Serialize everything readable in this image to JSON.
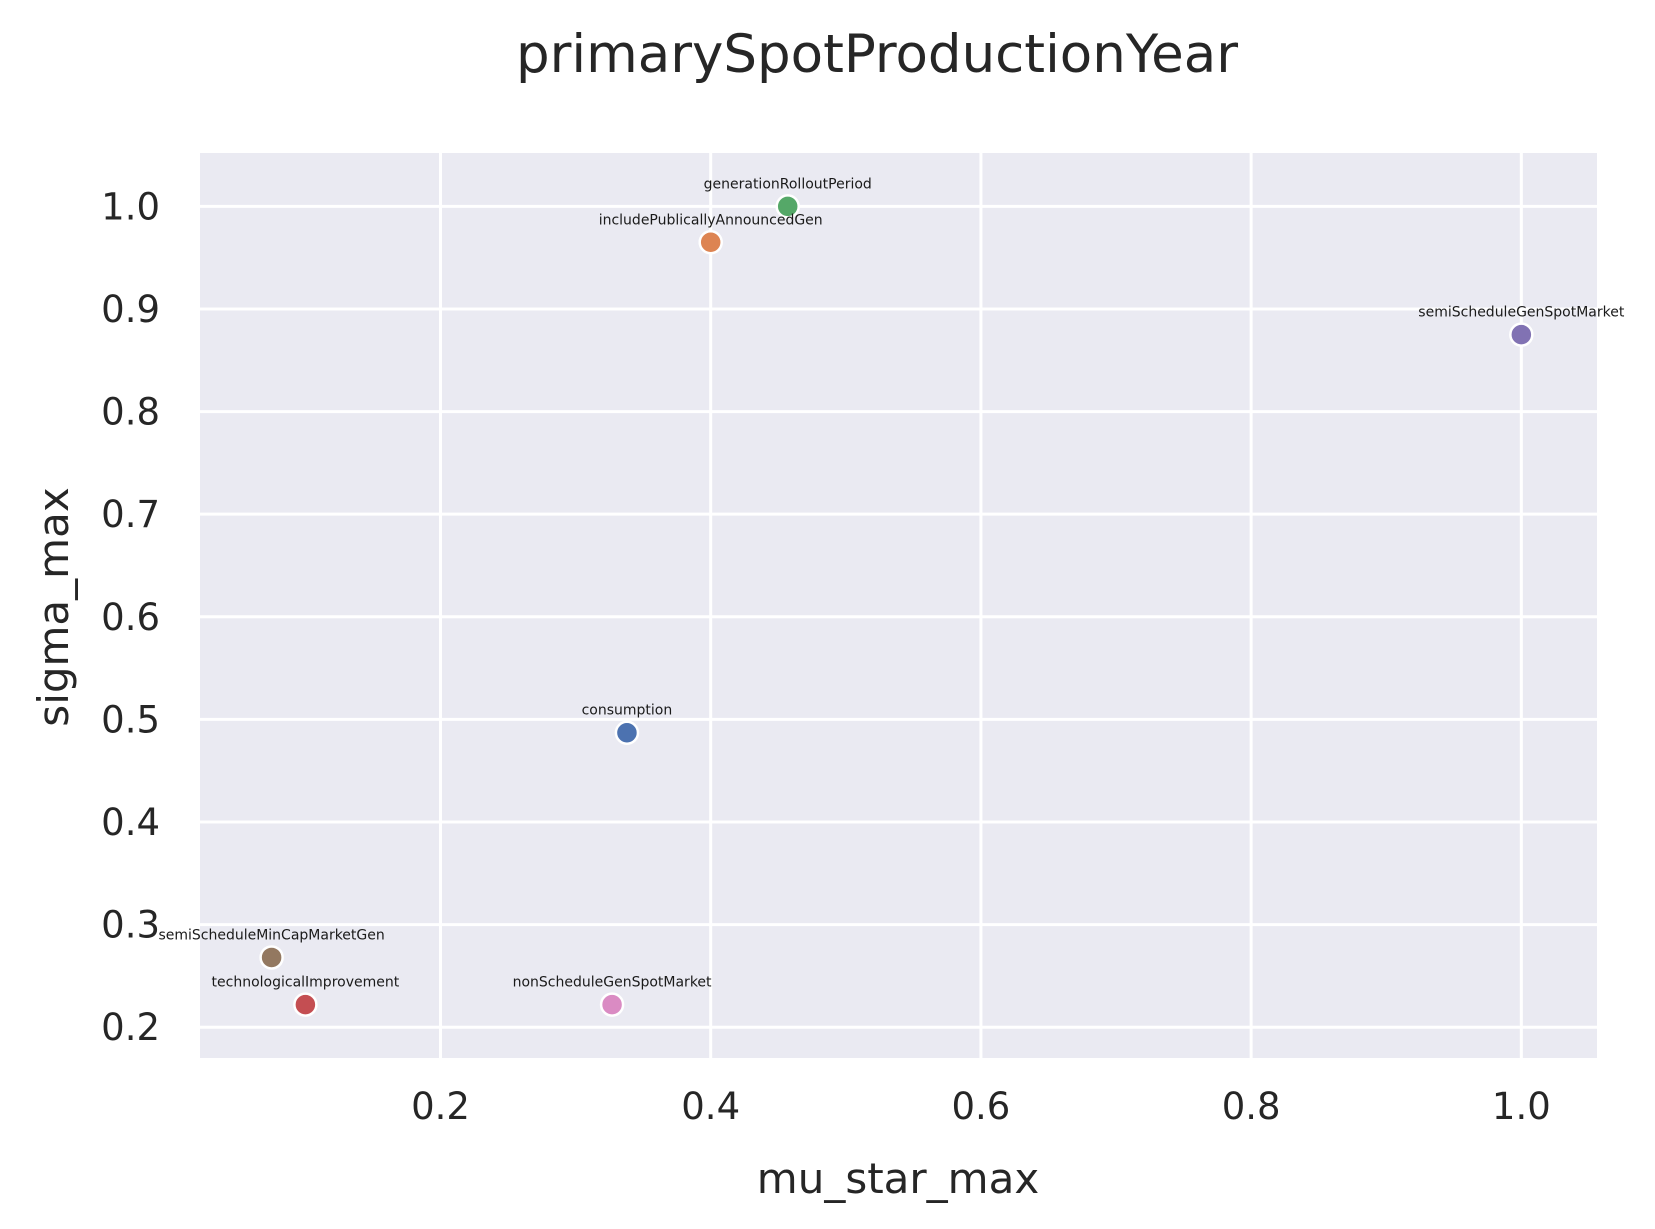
{
  "chart_data": {
    "type": "scatter",
    "title": "primarySpotProductionYear",
    "xlabel": "mu_star_max",
    "ylabel": "sigma_max",
    "xlim": [
      0.022,
      1.056
    ],
    "ylim": [
      0.17,
      1.052
    ],
    "xticks": [
      0.2,
      0.4,
      0.6,
      0.8,
      1.0
    ],
    "xtick_labels": [
      "0.2",
      "0.4",
      "0.6",
      "0.8",
      "1.0"
    ],
    "yticks": [
      0.2,
      0.3,
      0.4,
      0.5,
      0.6,
      0.7,
      0.8,
      0.9,
      1.0
    ],
    "ytick_labels": [
      "0.2",
      "0.3",
      "0.4",
      "0.5",
      "0.6",
      "0.7",
      "0.8",
      "0.9",
      "1.0"
    ],
    "grid": true,
    "background": "#EAEAF2",
    "points": [
      {
        "label": "consumption",
        "x": 0.338,
        "y": 0.487,
        "color": "#4C72B0"
      },
      {
        "label": "includePublicallyAnnouncedGen",
        "x": 0.4,
        "y": 0.965,
        "color": "#DD8452"
      },
      {
        "label": "generationRolloutPeriod",
        "x": 0.457,
        "y": 1.0,
        "color": "#55A868"
      },
      {
        "label": "technologicalImprovement",
        "x": 0.1,
        "y": 0.222,
        "color": "#C44E52"
      },
      {
        "label": "semiScheduleGenSpotMarket",
        "x": 1.0,
        "y": 0.875,
        "color": "#8172B3"
      },
      {
        "label": "semiScheduleMinCapMarketGen",
        "x": 0.075,
        "y": 0.268,
        "color": "#937860"
      },
      {
        "label": "nonScheduleGenSpotMarket",
        "x": 0.327,
        "y": 0.222,
        "color": "#DA8BC3"
      }
    ]
  }
}
